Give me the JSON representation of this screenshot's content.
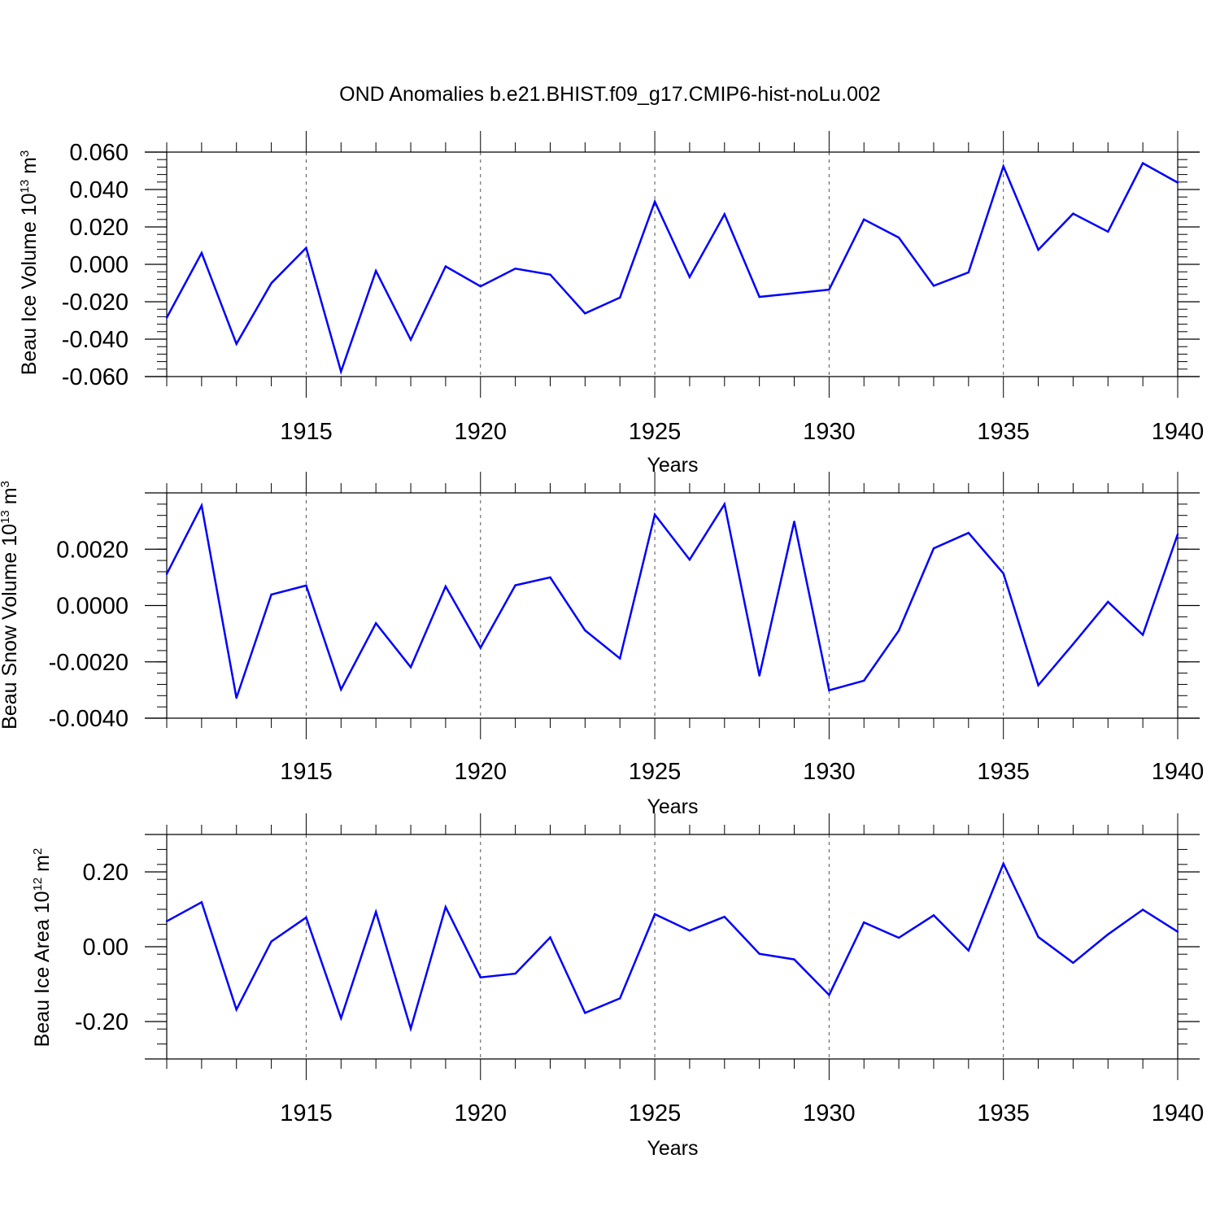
{
  "title": "OND Anomalies b.e21.BHIST.f09_g17.CMIP6-hist-noLu.002",
  "line_color": "#0000ff",
  "chart_data": [
    {
      "type": "line",
      "ylabel": "Beau Ice Volume 10",
      "ylabel_exp": "13",
      "ylabel_unit": "m",
      "ylabel_unit_exp": "3",
      "xlabel": "Years",
      "xlim": [
        1911,
        1940
      ],
      "ylim": [
        -0.06,
        0.06
      ],
      "yticks": [
        -0.06,
        -0.04,
        -0.02,
        0.0,
        0.02,
        0.04,
        0.06
      ],
      "ytick_labels": [
        "-0.060",
        "-0.040",
        "-0.020",
        "0.000",
        "0.020",
        "0.040",
        "0.060"
      ],
      "xticks": [
        1915,
        1920,
        1925,
        1930,
        1935,
        1940
      ],
      "xtick_labels": [
        "1915",
        "1920",
        "1925",
        "1930",
        "1935",
        "1940"
      ],
      "grid": "vertical dashed at major x ticks",
      "x": [
        1911,
        1912,
        1913,
        1914,
        1915,
        1916,
        1917,
        1918,
        1919,
        1920,
        1921,
        1922,
        1923,
        1924,
        1925,
        1926,
        1927,
        1928,
        1929,
        1930,
        1931,
        1932,
        1933,
        1934,
        1935,
        1936,
        1937,
        1938,
        1939,
        1940
      ],
      "y": [
        -0.0285,
        0.0061,
        -0.0425,
        -0.0101,
        0.0088,
        -0.0573,
        -0.0035,
        -0.0403,
        -0.0011,
        -0.0118,
        -0.0023,
        -0.0055,
        -0.0262,
        -0.0178,
        0.0335,
        -0.0068,
        0.0268,
        -0.0174,
        -0.0155,
        -0.0135,
        0.024,
        0.0143,
        -0.0115,
        -0.0043,
        0.0524,
        0.0078,
        0.0271,
        0.0175,
        0.0541,
        0.0437
      ]
    },
    {
      "type": "line",
      "ylabel": "Beau Snow Volume 10",
      "ylabel_exp": "13",
      "ylabel_unit": "m",
      "ylabel_unit_exp": "3",
      "xlabel": "Years",
      "xlim": [
        1911,
        1940
      ],
      "ylim": [
        -0.004,
        0.004
      ],
      "yticks": [
        -0.004,
        -0.002,
        0.0,
        0.002
      ],
      "ytick_labels": [
        "-0.0040",
        "-0.0020",
        "0.0000",
        "0.0020"
      ],
      "xticks": [
        1915,
        1920,
        1925,
        1930,
        1935,
        1940
      ],
      "xtick_labels": [
        "1915",
        "1920",
        "1925",
        "1930",
        "1935",
        "1940"
      ],
      "grid": "vertical dashed at major x ticks",
      "x": [
        1911,
        1912,
        1913,
        1914,
        1915,
        1916,
        1917,
        1918,
        1919,
        1920,
        1921,
        1922,
        1923,
        1924,
        1925,
        1926,
        1927,
        1928,
        1929,
        1930,
        1931,
        1932,
        1933,
        1934,
        1935,
        1936,
        1937,
        1938,
        1939,
        1940
      ],
      "y": [
        0.00112,
        0.00355,
        -0.00328,
        0.00039,
        0.00071,
        -0.00298,
        -0.00063,
        -0.00219,
        0.00068,
        -0.0015,
        0.00072,
        0.001,
        -0.00088,
        -0.00188,
        0.00323,
        0.00163,
        0.0036,
        -0.00249,
        0.00298,
        -0.00301,
        -0.00267,
        -0.00089,
        0.00203,
        0.00258,
        0.00114,
        -0.00283,
        -0.00137,
        0.00013,
        -0.00104,
        0.00253
      ]
    },
    {
      "type": "line",
      "ylabel": "Beau Ice Area 10",
      "ylabel_exp": "12",
      "ylabel_unit": "m",
      "ylabel_unit_exp": "2",
      "xlabel": "Years",
      "xlim": [
        1911,
        1940
      ],
      "ylim": [
        -0.3,
        0.3
      ],
      "yticks": [
        -0.2,
        0.0,
        0.2
      ],
      "ytick_labels": [
        "-0.20",
        "0.00",
        "0.20"
      ],
      "xticks": [
        1915,
        1920,
        1925,
        1930,
        1935,
        1940
      ],
      "xtick_labels": [
        "1915",
        "1920",
        "1925",
        "1930",
        "1935",
        "1940"
      ],
      "grid": "vertical dashed at major x ticks",
      "x": [
        1911,
        1912,
        1913,
        1914,
        1915,
        1916,
        1917,
        1918,
        1919,
        1920,
        1921,
        1922,
        1923,
        1924,
        1925,
        1926,
        1927,
        1928,
        1929,
        1930,
        1931,
        1932,
        1933,
        1934,
        1935,
        1936,
        1937,
        1938,
        1939,
        1940
      ],
      "y": [
        0.068,
        0.119,
        -0.168,
        0.014,
        0.078,
        -0.191,
        0.093,
        -0.219,
        0.106,
        -0.082,
        -0.072,
        0.025,
        -0.177,
        -0.138,
        0.087,
        0.043,
        0.08,
        -0.019,
        -0.034,
        -0.129,
        0.065,
        0.024,
        0.084,
        -0.01,
        0.222,
        0.026,
        -0.043,
        0.033,
        0.099,
        0.04
      ]
    }
  ]
}
